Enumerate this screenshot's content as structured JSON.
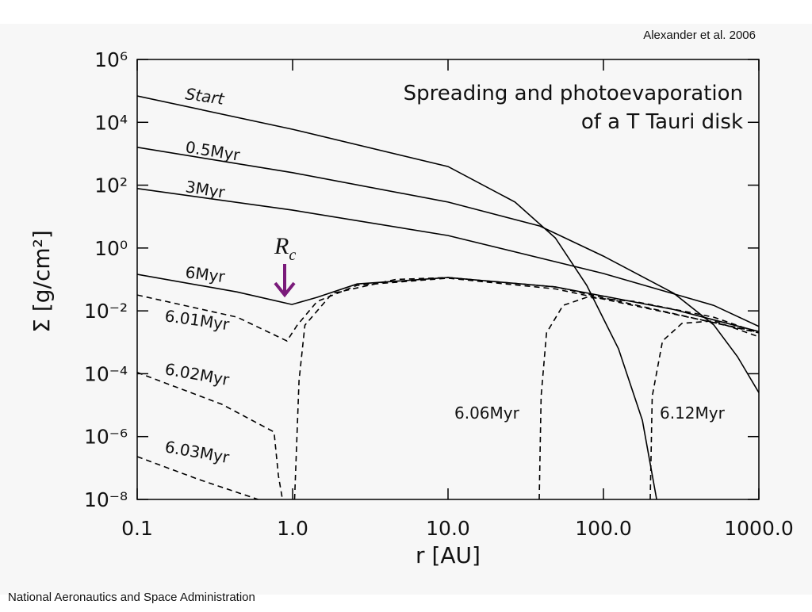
{
  "chart_data": {
    "type": "line",
    "title_lines": [
      "Spreading and photoevaporation",
      "of a T Tauri disk"
    ],
    "credit": "Alexander et al. 2006",
    "footer": "National Aeronautics and Space Administration",
    "xlabel": "r [AU]",
    "ylabel": "Σ [g/cm²]",
    "marker_label": {
      "main": "R",
      "sub": "c"
    },
    "marker_color": "#7a1a7a",
    "xscale": "log",
    "yscale": "log",
    "xlim": [
      0.1,
      1000
    ],
    "ylim": [
      1e-08,
      1000000
    ],
    "xticks": [
      0.1,
      {
        "value": 1,
        "label": "1.0"
      },
      {
        "value": 10,
        "label": "10.0"
      },
      {
        "value": 100,
        "label": "100.0"
      },
      {
        "value": 1000,
        "label": "1000.0"
      }
    ],
    "yticks": [
      {
        "value": 1e-08,
        "label": "10⁻⁸"
      },
      {
        "value": 1e-06,
        "label": "10⁻⁶"
      },
      {
        "value": 0.0001,
        "label": "10⁻⁴"
      },
      {
        "value": 0.01,
        "label": "10⁻²"
      },
      {
        "value": 1,
        "label": "10⁰"
      },
      {
        "value": 100,
        "label": "10²"
      },
      {
        "value": 10000,
        "label": "10⁴"
      },
      {
        "value": 1000000,
        "label": "10⁶"
      }
    ],
    "series": [
      {
        "name": "Start",
        "color": "#000000",
        "dashed": false,
        "x": [
          0.1,
          1.0,
          10,
          27,
          49,
          78,
          125,
          178,
          220
        ],
        "values": [
          69000,
          6000,
          390,
          29,
          2.1,
          0.065,
          0.00062,
          3.3e-06,
          1e-08
        ]
      },
      {
        "name": "0.5Myr",
        "color": "#000000",
        "dashed": false,
        "x": [
          0.1,
          1.0,
          10,
          39,
          100,
          284,
          512,
          728,
          1000
        ],
        "values": [
          1600,
          250,
          29,
          5,
          0.55,
          0.036,
          0.0036,
          0.00035,
          2.5e-05
        ]
      },
      {
        "name": "3Myr",
        "color": "#000000",
        "dashed": false,
        "x": [
          0.1,
          1.0,
          10,
          100,
          512,
          1000
        ],
        "values": [
          78,
          16,
          2.5,
          0.155,
          0.015,
          0.0032
        ]
      },
      {
        "name": "6Myr",
        "color": "#000000",
        "dashed": false,
        "x": [
          0.1,
          0.44,
          0.99,
          1.44,
          2.6,
          10,
          49,
          284,
          1000
        ],
        "values": [
          0.145,
          0.04,
          0.016,
          0.027,
          0.072,
          0.115,
          0.058,
          0.011,
          0.0022
        ]
      },
      {
        "name": "6.01Myr",
        "color": "#000000",
        "dashed": true,
        "x": [
          0.1,
          0.44,
          0.92,
          1.07,
          1.44,
          2.6,
          10,
          49,
          1000
        ],
        "values": [
          0.032,
          0.0063,
          0.0011,
          0.0035,
          0.02,
          0.065,
          0.11,
          0.05,
          0.0021
        ]
      },
      {
        "name": "6.02Myr",
        "color": "#000000",
        "dashed": true,
        "x": [
          0.1,
          0.35,
          0.76,
          0.81,
          0.86,
          null,
          1.03,
          1.1,
          1.2,
          1.8,
          4.6,
          10,
          49,
          1000
        ],
        "values": [
          0.00011,
          1.07e-05,
          1.4e-06,
          5.7e-08,
          1e-08,
          null,
          1e-08,
          6e-05,
          0.0035,
          0.036,
          0.1,
          0.115,
          0.058,
          0.002
        ]
      },
      {
        "name": "6.03Myr",
        "color": "#000000",
        "dashed": true,
        "x": [
          0.1,
          0.25,
          0.6
        ],
        "values": [
          2.3e-07,
          4.3e-08,
          1e-08
        ]
      },
      {
        "name": "6.06Myr",
        "color": "#000000",
        "dashed": true,
        "x": [
          38.6,
          39.7,
          43,
          55,
          78,
          158,
          512,
          1000
        ],
        "values": [
          1e-08,
          1.9e-05,
          0.002,
          0.015,
          0.027,
          0.02,
          0.0063,
          0.002
        ]
      },
      {
        "name": "6.12Myr",
        "color": "#000000",
        "dashed": true,
        "x": [
          200,
          206,
          240,
          320,
          512,
          1000
        ],
        "values": [
          1e-08,
          1.9e-05,
          0.0011,
          0.004,
          0.0048,
          0.0015
        ]
      }
    ]
  }
}
